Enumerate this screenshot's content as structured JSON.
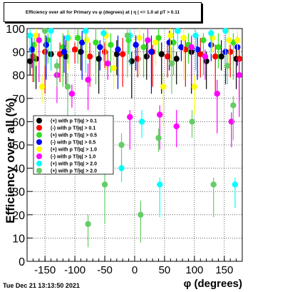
{
  "chart_data": {
    "type": "scatter",
    "title": "Efficiency over all for Primary vs φ (degrees) at | η | <= 1.0 at pT > 0.11",
    "xlabel": "φ (degrees)",
    "ylabel": "Efficiency over all (%)",
    "xlim": [
      -180,
      180
    ],
    "ylim": [
      0,
      100
    ],
    "x_ticks": [
      -150,
      -100,
      -50,
      0,
      50,
      100,
      150
    ],
    "y_ticks": [
      0,
      10,
      20,
      30,
      40,
      50,
      60,
      70,
      80,
      90,
      100
    ],
    "grid": true,
    "legend_position": "left-middle",
    "series": [
      {
        "name": "(+) with p T/|q| > 0.1",
        "color": "#000000",
        "points": [
          [
            -175,
            86
          ],
          [
            -165,
            87
          ],
          [
            -140,
            89
          ],
          [
            -115,
            88
          ],
          [
            -90,
            90
          ],
          [
            -60,
            87
          ],
          [
            -30,
            89
          ],
          [
            -5,
            86
          ],
          [
            20,
            88
          ],
          [
            45,
            89
          ],
          [
            70,
            87
          ],
          [
            95,
            90
          ],
          [
            120,
            86
          ],
          [
            145,
            88
          ],
          [
            170,
            87
          ]
        ]
      },
      {
        "name": "(-) with p T/|q| > 0.1",
        "color": "#ff0000",
        "points": [
          [
            -170,
            88
          ],
          [
            -150,
            90
          ],
          [
            -125,
            89
          ],
          [
            -100,
            91
          ],
          [
            -75,
            88
          ],
          [
            -50,
            90
          ],
          [
            -20,
            89
          ],
          [
            5,
            87
          ],
          [
            30,
            90
          ],
          [
            55,
            88
          ],
          [
            85,
            91
          ],
          [
            110,
            89
          ],
          [
            135,
            88
          ],
          [
            160,
            90
          ],
          [
            175,
            87
          ]
        ]
      },
      {
        "name": "(+) with p T/|q| > 0.5",
        "color": "#33dd22",
        "points": [
          [
            -168,
            93
          ],
          [
            -145,
            95
          ],
          [
            -120,
            92
          ],
          [
            -95,
            96
          ],
          [
            -65,
            94
          ],
          [
            -40,
            93
          ],
          [
            -10,
            95
          ],
          [
            15,
            92
          ],
          [
            40,
            96
          ],
          [
            65,
            94
          ],
          [
            90,
            93
          ],
          [
            115,
            95
          ],
          [
            140,
            92
          ],
          [
            165,
            94
          ]
        ]
      },
      {
        "name": "(-) with p T/|q| > 0.5",
        "color": "#0000ff",
        "points": [
          [
            -172,
            91
          ],
          [
            -148,
            93
          ],
          [
            -118,
            90
          ],
          [
            -88,
            94
          ],
          [
            -58,
            92
          ],
          [
            -28,
            91
          ],
          [
            2,
            93
          ],
          [
            28,
            90
          ],
          [
            58,
            94
          ],
          [
            78,
            92
          ],
          [
            105,
            91
          ],
          [
            128,
            93
          ],
          [
            152,
            90
          ],
          [
            172,
            92
          ]
        ]
      },
      {
        "name": "(+) with p T/|q| > 1.0",
        "color": "#ffff00",
        "points": [
          [
            -165,
            97
          ],
          [
            -155,
            75
          ],
          [
            -110,
            96
          ],
          [
            -80,
            95
          ],
          [
            -48,
            97
          ],
          [
            -35,
            83
          ],
          [
            8,
            96
          ],
          [
            35,
            94
          ],
          [
            48,
            75
          ],
          [
            60,
            97
          ],
          [
            82,
            96
          ],
          [
            100,
            75
          ],
          [
            130,
            96
          ],
          [
            158,
            95
          ],
          [
            172,
            95
          ]
        ]
      },
      {
        "name": "(-) with p T/|q| > 1.0",
        "color": "#ff00ff",
        "points": [
          [
            -160,
            95
          ],
          [
            -130,
            80
          ],
          [
            -105,
            72
          ],
          [
            -78,
            78
          ],
          [
            -45,
            85
          ],
          [
            -8,
            62
          ],
          [
            22,
            95
          ],
          [
            42,
            63
          ],
          [
            70,
            58
          ],
          [
            95,
            92
          ],
          [
            118,
            88
          ],
          [
            138,
            72
          ],
          [
            162,
            60
          ],
          [
            175,
            80
          ]
        ]
      },
      {
        "name": "(+) with p T/|q| > 2.0",
        "color": "#00ffff",
        "points": [
          [
            -175,
            97
          ],
          [
            -140,
            99
          ],
          [
            -112,
            96
          ],
          [
            -82,
            99
          ],
          [
            -52,
            98
          ],
          [
            -22,
            40
          ],
          [
            -8,
            97
          ],
          [
            12,
            60
          ],
          [
            42,
            33
          ],
          [
            72,
            99
          ],
          [
            102,
            97
          ],
          [
            128,
            98
          ],
          [
            152,
            99
          ],
          [
            168,
            33
          ]
        ]
      },
      {
        "name": "(+) with p T/|q| > 2.0",
        "color": "#66cc66",
        "points": [
          [
            -150,
            99
          ],
          [
            -130,
            84
          ],
          [
            -112,
            75
          ],
          [
            -78,
            16
          ],
          [
            -50,
            33
          ],
          [
            -22,
            50
          ],
          [
            -12,
            97
          ],
          [
            10,
            20
          ],
          [
            40,
            53
          ],
          [
            62,
            85
          ],
          [
            96,
            60
          ],
          [
            132,
            33
          ],
          [
            155,
            84
          ],
          [
            165,
            67
          ]
        ]
      }
    ]
  },
  "timestamp": "Tue Dec 21 13:13:50 2021"
}
